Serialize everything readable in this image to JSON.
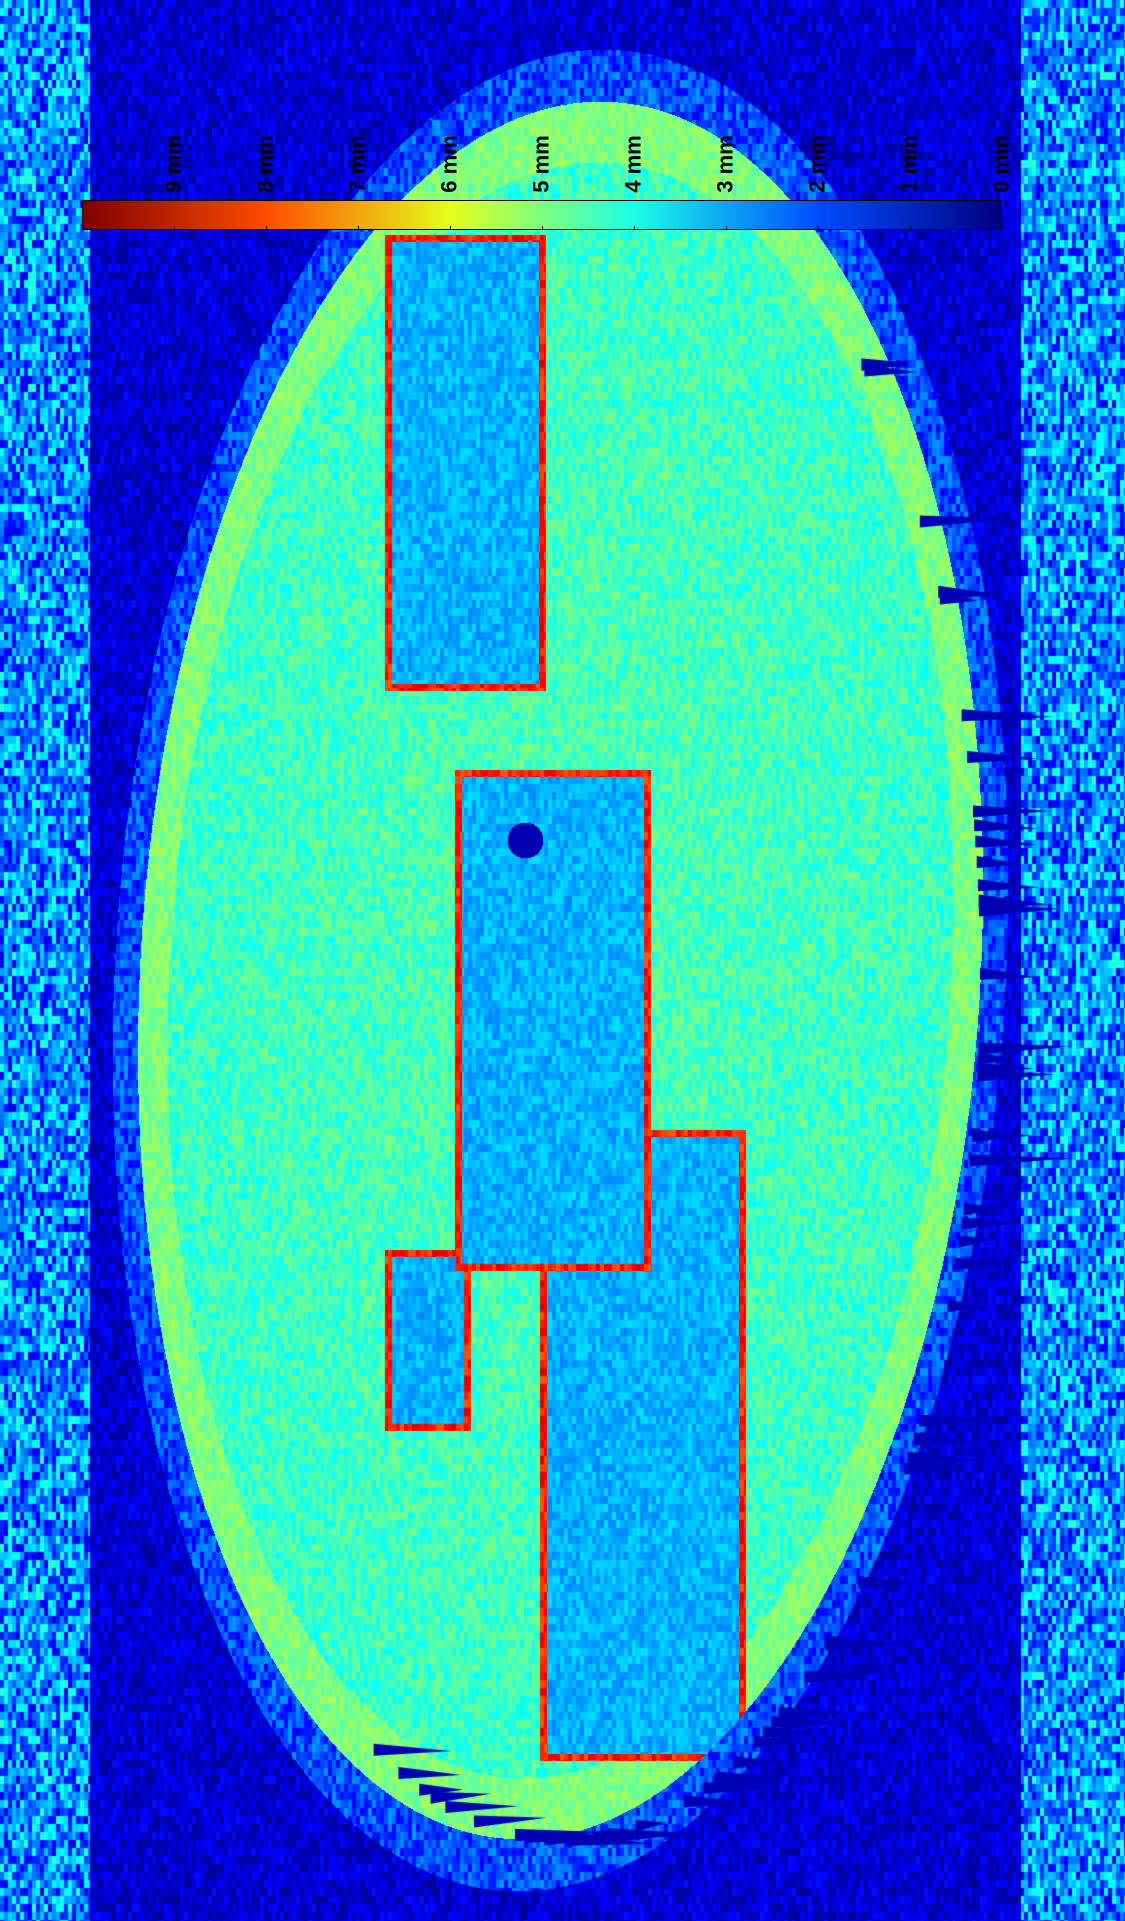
{
  "chart_data": {
    "type": "heatmap",
    "title": "",
    "quantity_unit": "mm",
    "colormap": "jet",
    "colorbar": {
      "orientation": "horizontal",
      "placement": "top",
      "direction": "decreasing left-to-right",
      "range": [
        0,
        10
      ],
      "ticks": [
        9,
        8,
        7,
        6,
        5,
        4,
        3,
        2,
        1,
        0
      ],
      "tick_labels": [
        "9 mm",
        "8 mm",
        "7 mm",
        "6 mm",
        "5 mm",
        "4 mm",
        "3 mm",
        "2 mm",
        "1 mm",
        "0 mm"
      ]
    },
    "surface": {
      "description_regions": [
        {
          "region": "background",
          "value_mm": 0.8
        },
        {
          "region": "elliptical-disc",
          "value_mm": 4.2
        },
        {
          "region": "disc-edge-highlight",
          "value_mm": 5.0
        },
        {
          "region": "slot-edges",
          "value_mm": 8.5
        },
        {
          "region": "slot-floors",
          "value_mm": 3.0
        },
        {
          "region": "central-hole",
          "value_mm": 0.5
        }
      ]
    },
    "grid": false,
    "legend": "none"
  },
  "colors": {
    "jet_stops": [
      "#00008f",
      "#0000ff",
      "#00ffff",
      "#ffff00",
      "#ff0000",
      "#800000"
    ]
  }
}
